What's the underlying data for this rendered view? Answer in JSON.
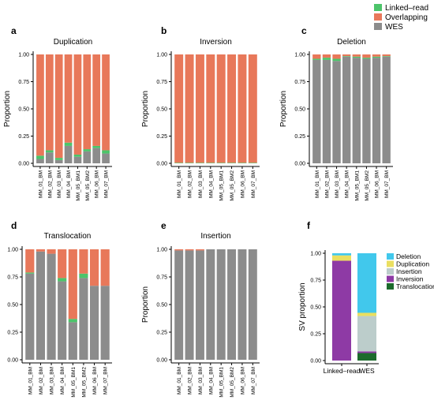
{
  "colors": {
    "wes": "#8c8c8c",
    "overlapping": "#e8785a",
    "linked_read": "#4cc46a",
    "deletion": "#41c8ec",
    "duplication": "#eadf60",
    "insertion": "#bccdcb",
    "inversion": "#8e3aa5",
    "translocation": "#1c6b2c"
  },
  "legend": [
    {
      "label": "Linked–read",
      "color_key": "linked_read"
    },
    {
      "label": "Overlapping",
      "color_key": "overlapping"
    },
    {
      "label": "WES",
      "color_key": "wes"
    }
  ],
  "samples": [
    "MM_01_BM",
    "MM_02_BM",
    "MM_03_BM",
    "MM_04_BM",
    "MM_05_BM1",
    "MM_05_BM2",
    "MM_06_BM",
    "MM_07_BM"
  ],
  "yticks": [
    "0.00",
    "0.25",
    "0.50",
    "0.75",
    "1.00"
  ],
  "fticks": [
    "0.00",
    "0.25",
    "0.50",
    "0.75",
    "1.00"
  ],
  "chart_data": [
    {
      "type": "bar",
      "letter": "a",
      "title": "Duplication",
      "ylabel": "Proportion",
      "ylim": [
        0,
        1
      ],
      "series": [
        {
          "name": "WES",
          "values": [
            0.04,
            0.1,
            0.03,
            0.16,
            0.06,
            0.11,
            0.14,
            0.09
          ]
        },
        {
          "name": "Linked–read",
          "values": [
            0.03,
            0.02,
            0.02,
            0.03,
            0.02,
            0.02,
            0.02,
            0.03
          ]
        },
        {
          "name": "Overlapping",
          "values": [
            0.93,
            0.88,
            0.95,
            0.81,
            0.92,
            0.87,
            0.84,
            0.88
          ]
        }
      ]
    },
    {
      "type": "bar",
      "letter": "b",
      "title": "Inversion",
      "ylabel": "Proportion",
      "ylim": [
        0,
        1
      ],
      "series": [
        {
          "name": "WES",
          "values": [
            0,
            0,
            0,
            0,
            0,
            0,
            0,
            0
          ]
        },
        {
          "name": "Linked–read",
          "values": [
            0.005,
            0.005,
            0.005,
            0.005,
            0.005,
            0.005,
            0.005,
            0.005
          ]
        },
        {
          "name": "Overlapping",
          "values": [
            0.995,
            0.995,
            0.995,
            0.995,
            0.995,
            0.995,
            0.995,
            0.995
          ]
        }
      ]
    },
    {
      "type": "bar",
      "letter": "c",
      "title": "Deletion",
      "ylabel": "Proportion",
      "ylim": [
        0,
        1
      ],
      "series": [
        {
          "name": "WES",
          "values": [
            0.95,
            0.95,
            0.94,
            0.98,
            0.97,
            0.96,
            0.97,
            0.98
          ]
        },
        {
          "name": "Linked–read",
          "values": [
            0.01,
            0.02,
            0.02,
            0.005,
            0.01,
            0.01,
            0.01,
            0.005
          ]
        },
        {
          "name": "Overlapping",
          "values": [
            0.04,
            0.03,
            0.04,
            0.015,
            0.02,
            0.03,
            0.02,
            0.015
          ]
        }
      ]
    },
    {
      "type": "bar",
      "letter": "d",
      "title": "Translocation",
      "ylabel": "Proportion",
      "ylim": [
        0,
        1
      ],
      "series": [
        {
          "name": "WES",
          "values": [
            0.78,
            0.98,
            0.96,
            0.71,
            0.34,
            0.74,
            0.67,
            0.67
          ]
        },
        {
          "name": "Linked–read",
          "values": [
            0.01,
            0.0,
            0.0,
            0.03,
            0.03,
            0.04,
            0.0,
            0.0
          ]
        },
        {
          "name": "Overlapping",
          "values": [
            0.21,
            0.02,
            0.04,
            0.26,
            0.63,
            0.22,
            0.33,
            0.33
          ]
        }
      ]
    },
    {
      "type": "bar",
      "letter": "e",
      "title": "Insertion",
      "ylabel": "Proportion",
      "ylim": [
        0,
        1
      ],
      "series": [
        {
          "name": "WES",
          "values": [
            0.99,
            0.99,
            0.99,
            1.0,
            1.0,
            1.0,
            1.0,
            1.0
          ]
        },
        {
          "name": "Linked–read",
          "values": [
            0.0,
            0.0,
            0.0,
            0.0,
            0.0,
            0.0,
            0.0,
            0.0
          ]
        },
        {
          "name": "Overlapping",
          "values": [
            0.01,
            0.01,
            0.01,
            0.0,
            0.0,
            0.0,
            0.0,
            0.0
          ]
        }
      ]
    },
    {
      "type": "bar",
      "letter": "f",
      "title": "",
      "ylabel": "SV proportion",
      "ylim": [
        0,
        1
      ],
      "categories": [
        "Linked–read",
        "WES"
      ],
      "legend": [
        "Deletion",
        "Duplication",
        "Insertion",
        "Inversion",
        "Translocation"
      ],
      "series": [
        {
          "name": "Translocation",
          "values": [
            0.0,
            0.07
          ]
        },
        {
          "name": "Inversion",
          "values": [
            0.93,
            0.015
          ]
        },
        {
          "name": "Insertion",
          "values": [
            0.0,
            0.33
          ]
        },
        {
          "name": "Duplication",
          "values": [
            0.05,
            0.03
          ]
        },
        {
          "name": "Deletion",
          "values": [
            0.02,
            0.555
          ]
        }
      ]
    }
  ]
}
